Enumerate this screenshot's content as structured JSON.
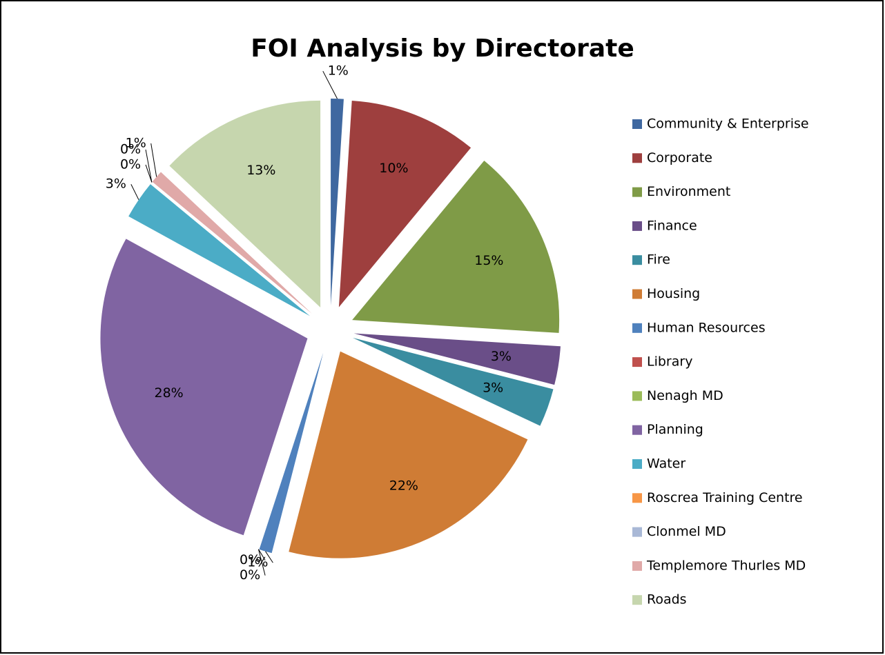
{
  "chart_data": {
    "type": "pie",
    "title": "FOI Analysis by Directorate",
    "categories": [
      "Community & Enterprise",
      "Corporate",
      "Environment",
      "Finance",
      "Fire",
      "Housing",
      "Human Resources",
      "Library",
      "Nenagh MD",
      "Planning",
      "Water",
      "Roscrea Training Centre",
      "Clonmel MD",
      "Templemore Thurles MD",
      "Roads"
    ],
    "values": [
      1,
      10,
      15,
      3,
      3,
      22,
      1,
      0,
      0,
      28,
      3,
      0,
      0,
      1,
      13
    ],
    "value_labels": [
      "1%",
      "10%",
      "15%",
      "3%",
      "3%",
      "22%",
      "1%",
      "0%",
      "0%",
      "28%",
      "3%",
      "0%",
      "0%",
      "1%",
      "13%"
    ],
    "colors": [
      "#3f68a0",
      "#9e3f3e",
      "#7f9b47",
      "#6a4e88",
      "#3a8da0",
      "#cf7c35",
      "#4f81bd",
      "#c0504d",
      "#9bbb59",
      "#8064a2",
      "#4bacc6",
      "#f79646",
      "#a9b8d6",
      "#e0a9a8",
      "#c6d6ae"
    ],
    "legend": "right"
  }
}
